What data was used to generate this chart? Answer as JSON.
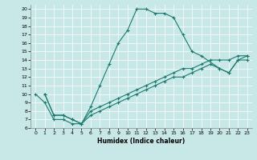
{
  "xlabel": "Humidex (Indice chaleur)",
  "xlim": [
    -0.5,
    23.5
  ],
  "ylim": [
    6,
    20.5
  ],
  "xticks": [
    0,
    1,
    2,
    3,
    4,
    5,
    6,
    7,
    8,
    9,
    10,
    11,
    12,
    13,
    14,
    15,
    16,
    17,
    18,
    19,
    20,
    21,
    22,
    23
  ],
  "yticks": [
    6,
    7,
    8,
    9,
    10,
    11,
    12,
    13,
    14,
    15,
    16,
    17,
    18,
    19,
    20
  ],
  "bg_color": "#c8e8e8",
  "grid_color": "#b0d4d4",
  "line_color": "#1a7a6e",
  "line1_x": [
    0,
    1,
    2,
    3,
    4,
    5,
    6,
    7,
    8,
    9,
    10,
    11,
    12,
    13,
    14,
    15,
    16,
    17,
    18,
    20,
    21,
    22,
    23
  ],
  "line1_y": [
    10,
    9,
    7,
    7,
    6.5,
    6.5,
    8.5,
    11,
    13.5,
    16,
    17.5,
    20,
    20,
    19.5,
    19.5,
    19,
    17,
    15,
    14.5,
    13,
    12.5,
    14,
    14
  ],
  "line2_x": [
    1,
    2,
    3,
    4,
    5,
    6,
    7,
    8,
    9,
    10,
    11,
    12,
    13,
    14,
    15,
    16,
    17,
    18,
    19,
    20,
    21,
    22,
    23
  ],
  "line2_y": [
    10,
    7.5,
    7.5,
    7,
    6.5,
    8,
    8.5,
    9,
    9.5,
    10,
    10.5,
    11,
    11.5,
    12,
    12.5,
    13,
    13,
    13.5,
    14,
    14,
    14,
    14.5,
    14.5
  ],
  "line3_x": [
    1,
    2,
    3,
    4,
    5,
    6,
    7,
    8,
    9,
    10,
    11,
    12,
    13,
    14,
    15,
    16,
    17,
    18,
    19,
    20,
    21,
    22,
    23
  ],
  "line3_y": [
    10,
    7.5,
    7.5,
    7,
    6.5,
    7.5,
    8,
    8.5,
    9,
    9.5,
    10,
    10.5,
    11,
    11.5,
    12,
    12,
    12.5,
    13,
    13.5,
    13,
    12.5,
    14,
    14.5
  ]
}
